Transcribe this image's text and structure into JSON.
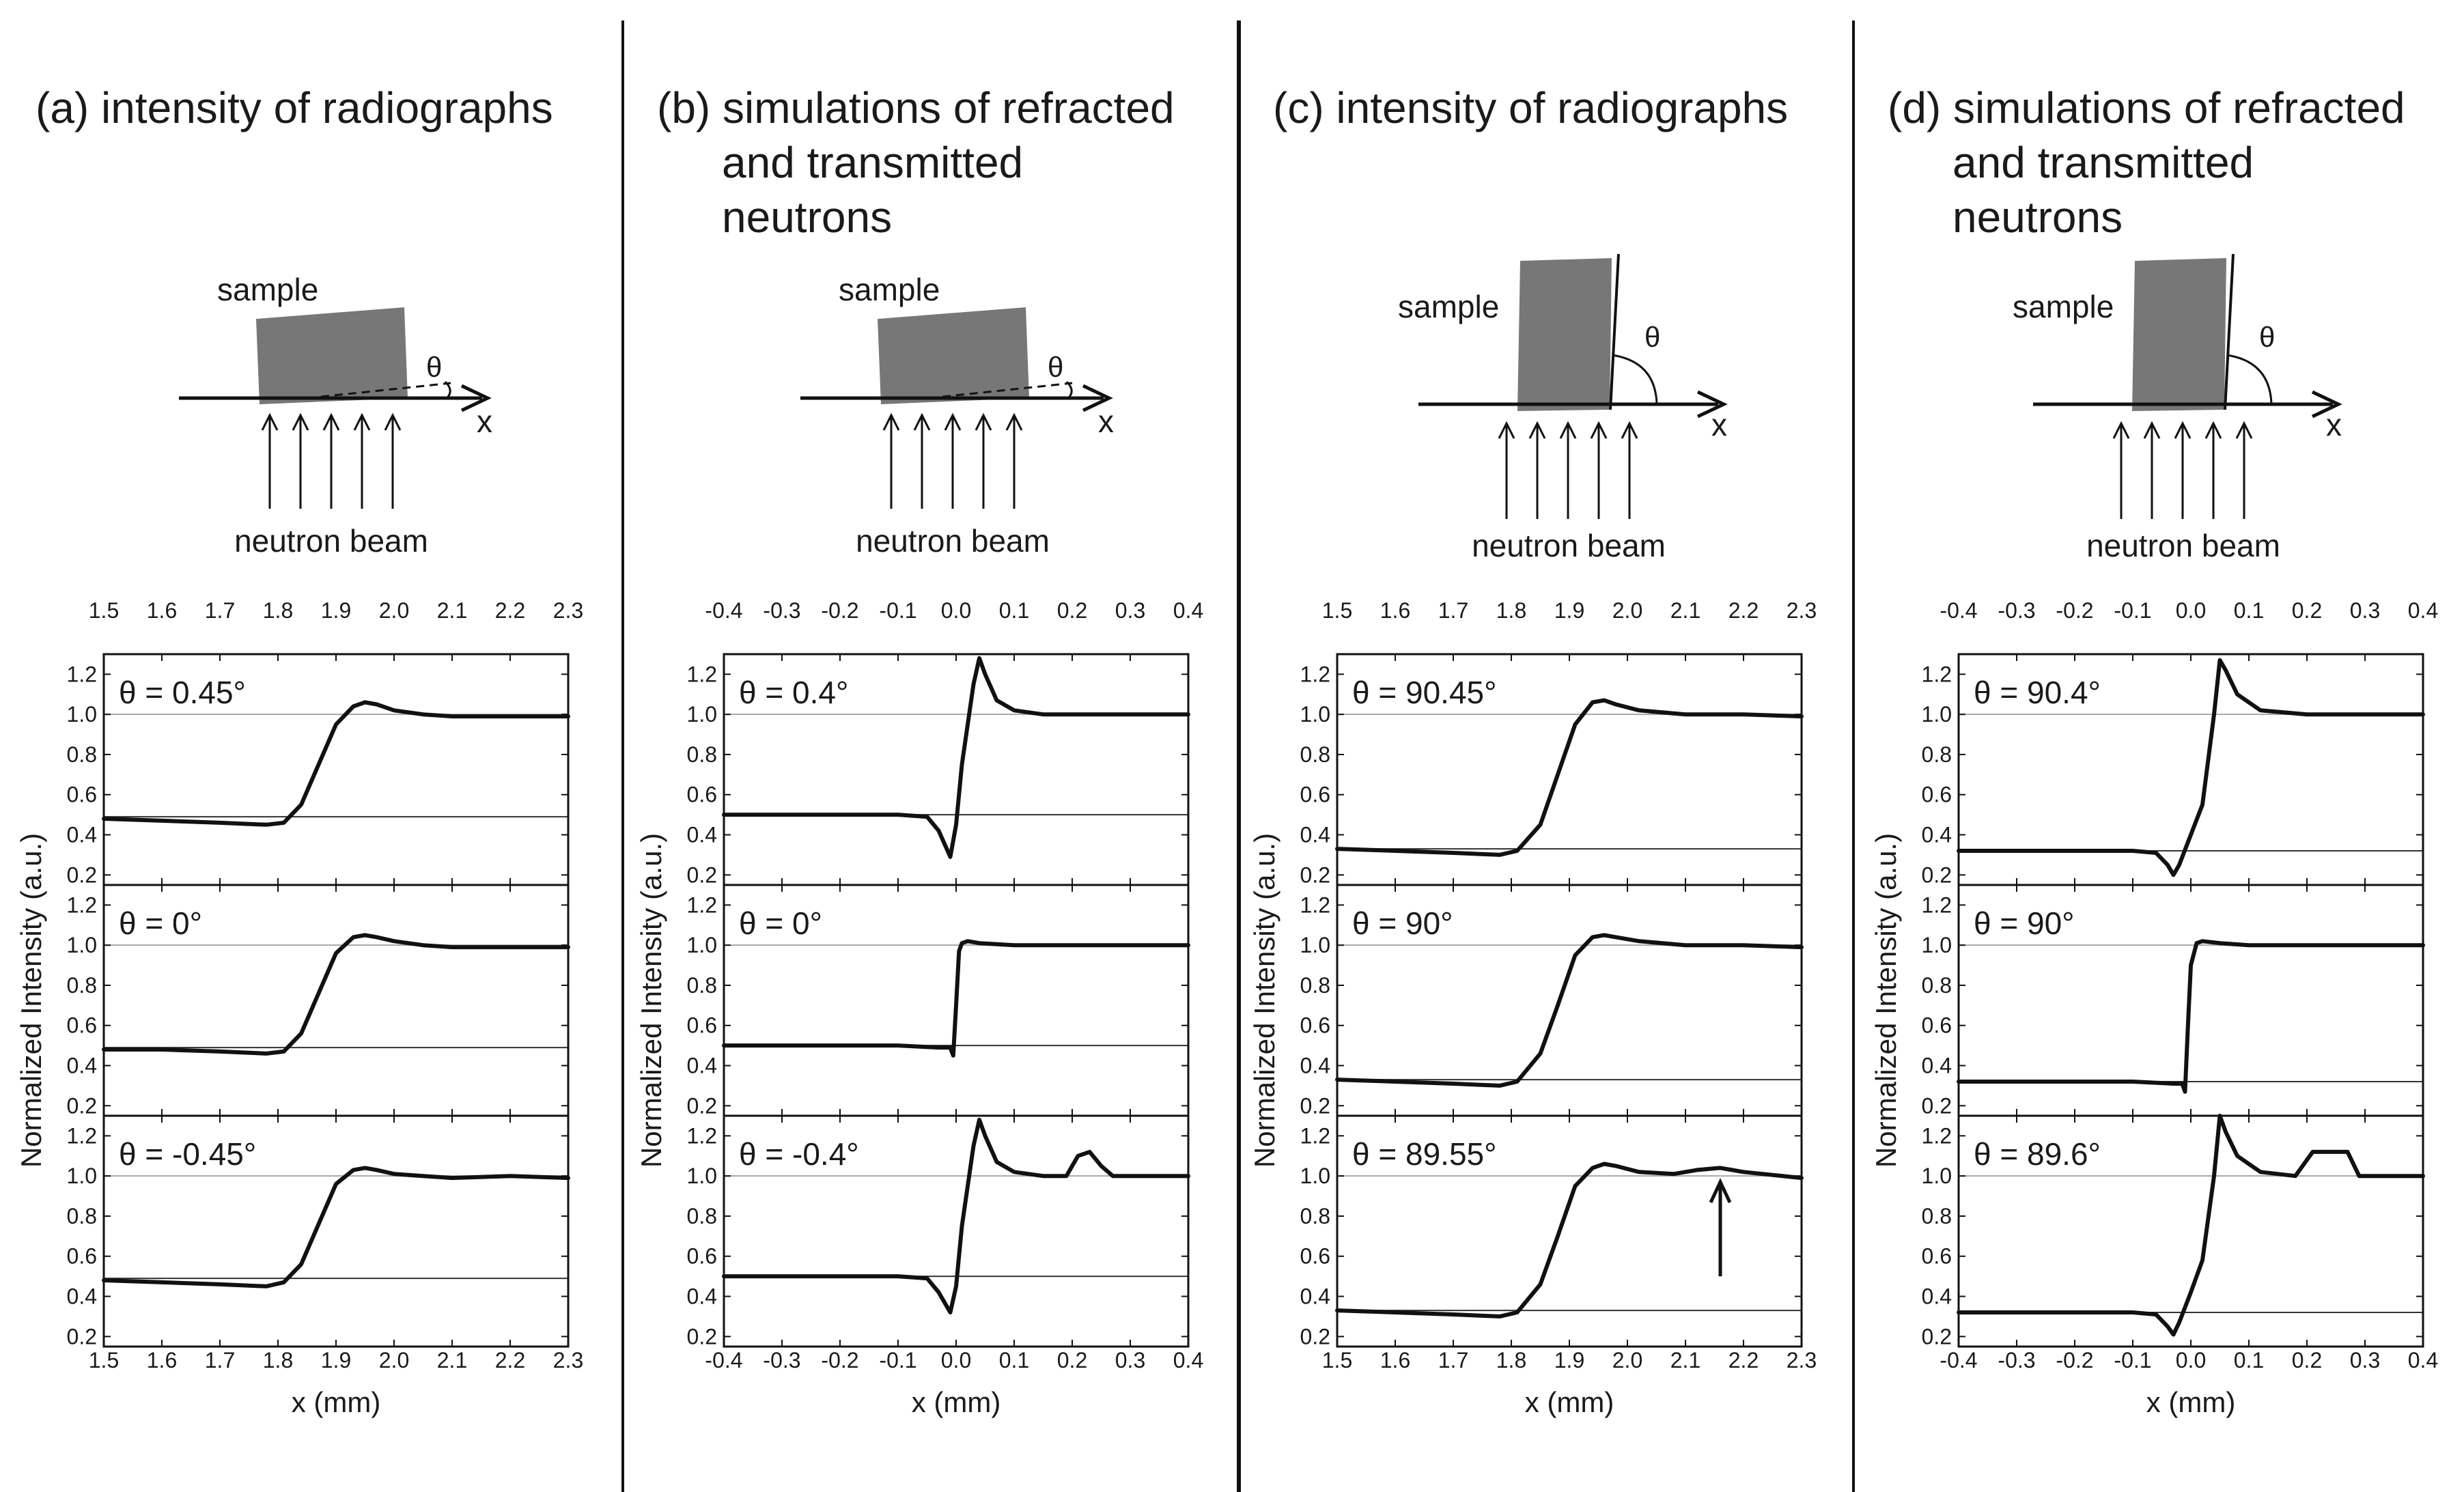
{
  "panels": [
    {
      "id": "a",
      "title_lines": [
        "(a) intensity of radiographs"
      ],
      "schematic": {
        "orientation": "horizontal",
        "sample_label": "sample",
        "angle_label": "θ",
        "axis_label": "x",
        "beam_label": "neutron beam"
      }
    },
    {
      "id": "b",
      "title_lines": [
        "(b) simulations of refracted",
        "and transmitted",
        "neutrons"
      ],
      "schematic": {
        "orientation": "horizontal",
        "sample_label": "sample",
        "angle_label": "θ",
        "axis_label": "x",
        "beam_label": "neutron beam"
      }
    },
    {
      "id": "c",
      "title_lines": [
        "(c) intensity of radiographs"
      ],
      "schematic": {
        "orientation": "vertical",
        "sample_label": "sample",
        "angle_label": "θ",
        "axis_label": "x",
        "beam_label": "neutron beam"
      }
    },
    {
      "id": "d",
      "title_lines": [
        "(d) simulations of refracted",
        "and transmitted",
        "neutrons"
      ],
      "schematic": {
        "orientation": "vertical",
        "sample_label": "sample",
        "angle_label": "θ",
        "axis_label": "x",
        "beam_label": "neutron beam"
      }
    }
  ],
  "chart_data": [
    {
      "panel": "a",
      "type": "line",
      "xlabel": "x (mm)",
      "ylabel": "Normalized Intensity (a.u.)",
      "xlim": [
        1.5,
        2.3
      ],
      "ylim": [
        0.15,
        1.3
      ],
      "xticks": [
        "1.5",
        "1.6",
        "1.7",
        "1.8",
        "1.9",
        "2.0",
        "2.1",
        "2.2",
        "2.3"
      ],
      "yticks": [
        "0.2",
        "0.4",
        "0.6",
        "0.8",
        "1.0",
        "1.2"
      ],
      "subplots": [
        {
          "label": "θ = 0.45°",
          "ref_lines": [
            1.0,
            0.49
          ],
          "series": {
            "x": [
              1.5,
              1.6,
              1.7,
              1.78,
              1.81,
              1.84,
              1.87,
              1.9,
              1.93,
              1.95,
              1.97,
              2.0,
              2.05,
              2.1,
              2.2,
              2.3
            ],
            "y": [
              0.48,
              0.47,
              0.46,
              0.45,
              0.46,
              0.55,
              0.75,
              0.95,
              1.04,
              1.06,
              1.05,
              1.02,
              1.0,
              0.99,
              0.99,
              0.99
            ]
          }
        },
        {
          "label": "θ = 0°",
          "ref_lines": [
            1.0,
            0.49
          ],
          "series": {
            "x": [
              1.5,
              1.6,
              1.7,
              1.78,
              1.81,
              1.84,
              1.87,
              1.9,
              1.93,
              1.95,
              1.97,
              2.0,
              2.05,
              2.1,
              2.2,
              2.3
            ],
            "y": [
              0.48,
              0.48,
              0.47,
              0.46,
              0.47,
              0.56,
              0.76,
              0.96,
              1.04,
              1.05,
              1.04,
              1.02,
              1.0,
              0.99,
              0.99,
              0.99
            ]
          }
        },
        {
          "label": "θ = -0.45°",
          "ref_lines": [
            1.0,
            0.49
          ],
          "series": {
            "x": [
              1.5,
              1.6,
              1.7,
              1.78,
              1.81,
              1.84,
              1.87,
              1.9,
              1.93,
              1.95,
              1.97,
              2.0,
              2.05,
              2.1,
              2.2,
              2.3
            ],
            "y": [
              0.48,
              0.47,
              0.46,
              0.45,
              0.47,
              0.56,
              0.76,
              0.96,
              1.03,
              1.04,
              1.03,
              1.01,
              1.0,
              0.99,
              1.0,
              0.99
            ]
          }
        }
      ]
    },
    {
      "panel": "b",
      "type": "line",
      "xlabel": "x (mm)",
      "ylabel": "Normalized Intensity (a.u.)",
      "xlim": [
        -0.4,
        0.4
      ],
      "ylim": [
        0.15,
        1.3
      ],
      "xticks": [
        "-0.4",
        "-0.3",
        "-0.2",
        "-0.1",
        "0.0",
        "0.1",
        "0.2",
        "0.3",
        "0.4"
      ],
      "yticks": [
        "0.2",
        "0.4",
        "0.6",
        "0.8",
        "1.0",
        "1.2"
      ],
      "subplots": [
        {
          "label": "θ = 0.4°",
          "ref_lines": [
            1.0,
            0.5
          ],
          "series": {
            "x": [
              -0.4,
              -0.1,
              -0.05,
              -0.03,
              -0.01,
              0.0,
              0.01,
              0.03,
              0.04,
              0.05,
              0.07,
              0.1,
              0.15,
              0.2,
              0.4
            ],
            "y": [
              0.5,
              0.5,
              0.49,
              0.42,
              0.29,
              0.45,
              0.75,
              1.15,
              1.28,
              1.2,
              1.07,
              1.02,
              1.0,
              1.0,
              1.0
            ]
          }
        },
        {
          "label": "θ = 0°",
          "ref_lines": [
            1.0,
            0.5
          ],
          "series": {
            "x": [
              -0.4,
              -0.1,
              -0.03,
              -0.01,
              -0.005,
              0.0,
              0.005,
              0.01,
              0.02,
              0.04,
              0.1,
              0.2,
              0.4
            ],
            "y": [
              0.5,
              0.5,
              0.49,
              0.49,
              0.45,
              0.7,
              0.97,
              1.01,
              1.02,
              1.01,
              1.0,
              1.0,
              1.0
            ]
          }
        },
        {
          "label": "θ = -0.4°",
          "ref_lines": [
            1.0,
            0.5
          ],
          "series": {
            "x": [
              -0.4,
              -0.1,
              -0.05,
              -0.03,
              -0.01,
              0.0,
              0.01,
              0.03,
              0.04,
              0.05,
              0.07,
              0.1,
              0.15,
              0.19,
              0.21,
              0.23,
              0.25,
              0.27,
              0.3,
              0.4
            ],
            "y": [
              0.5,
              0.5,
              0.49,
              0.42,
              0.32,
              0.45,
              0.75,
              1.15,
              1.28,
              1.2,
              1.07,
              1.02,
              1.0,
              1.0,
              1.1,
              1.12,
              1.05,
              1.0,
              1.0,
              1.0
            ]
          }
        }
      ]
    },
    {
      "panel": "c",
      "type": "line",
      "xlabel": "x (mm)",
      "ylabel": "Normalized Intensity (a.u.)",
      "xlim": [
        1.5,
        2.3
      ],
      "ylim": [
        0.15,
        1.3
      ],
      "xticks": [
        "1.5",
        "1.6",
        "1.7",
        "1.8",
        "1.9",
        "2.0",
        "2.1",
        "2.2",
        "2.3"
      ],
      "yticks": [
        "0.2",
        "0.4",
        "0.6",
        "0.8",
        "1.0",
        "1.2"
      ],
      "subplots": [
        {
          "label": "θ = 90.45°",
          "ref_lines": [
            1.0,
            0.33
          ],
          "series": {
            "x": [
              1.5,
              1.6,
              1.7,
              1.78,
              1.81,
              1.85,
              1.88,
              1.91,
              1.94,
              1.96,
              1.98,
              2.02,
              2.1,
              2.2,
              2.3
            ],
            "y": [
              0.33,
              0.32,
              0.31,
              0.3,
              0.32,
              0.45,
              0.7,
              0.95,
              1.06,
              1.07,
              1.05,
              1.02,
              1.0,
              1.0,
              0.99
            ]
          }
        },
        {
          "label": "θ = 90°",
          "ref_lines": [
            1.0,
            0.33
          ],
          "series": {
            "x": [
              1.5,
              1.6,
              1.7,
              1.78,
              1.81,
              1.85,
              1.88,
              1.91,
              1.94,
              1.96,
              1.98,
              2.02,
              2.1,
              2.2,
              2.3
            ],
            "y": [
              0.33,
              0.32,
              0.31,
              0.3,
              0.32,
              0.46,
              0.7,
              0.95,
              1.04,
              1.05,
              1.04,
              1.02,
              1.0,
              1.0,
              0.99
            ]
          }
        },
        {
          "label": "θ = 89.55°",
          "ref_lines": [
            1.0,
            0.33
          ],
          "series": {
            "x": [
              1.5,
              1.6,
              1.7,
              1.78,
              1.81,
              1.85,
              1.88,
              1.91,
              1.94,
              1.96,
              1.98,
              2.02,
              2.08,
              2.12,
              2.16,
              2.2,
              2.3
            ],
            "y": [
              0.33,
              0.32,
              0.31,
              0.3,
              0.32,
              0.46,
              0.7,
              0.95,
              1.04,
              1.06,
              1.05,
              1.02,
              1.01,
              1.03,
              1.04,
              1.02,
              0.99
            ]
          }
        }
      ],
      "annotation": {
        "type": "arrow",
        "x": 2.16,
        "y_tail": 0.5,
        "y_head": 0.97
      }
    },
    {
      "panel": "d",
      "type": "line",
      "xlabel": "x (mm)",
      "ylabel": "Normalized Intensity (a.u.)",
      "xlim": [
        -0.4,
        0.4
      ],
      "ylim": [
        0.15,
        1.3
      ],
      "xticks": [
        "-0.4",
        "-0.3",
        "-0.2",
        "-0.1",
        "0.0",
        "0.1",
        "0.2",
        "0.3",
        "0.4"
      ],
      "yticks": [
        "0.2",
        "0.4",
        "0.6",
        "0.8",
        "1.0",
        "1.2"
      ],
      "subplots": [
        {
          "label": "θ = 90.4°",
          "ref_lines": [
            1.0,
            0.32
          ],
          "series": {
            "x": [
              -0.4,
              -0.1,
              -0.06,
              -0.04,
              -0.03,
              -0.02,
              0.0,
              0.02,
              0.04,
              0.05,
              0.06,
              0.08,
              0.12,
              0.2,
              0.4
            ],
            "y": [
              0.32,
              0.32,
              0.31,
              0.25,
              0.2,
              0.25,
              0.4,
              0.55,
              1.0,
              1.27,
              1.22,
              1.1,
              1.02,
              1.0,
              1.0
            ]
          }
        },
        {
          "label": "θ = 90°",
          "ref_lines": [
            1.0,
            0.32
          ],
          "series": {
            "x": [
              -0.4,
              -0.1,
              -0.03,
              -0.015,
              -0.01,
              -0.005,
              0.0,
              0.01,
              0.02,
              0.05,
              0.1,
              0.2,
              0.4
            ],
            "y": [
              0.32,
              0.32,
              0.31,
              0.31,
              0.27,
              0.6,
              0.9,
              1.01,
              1.02,
              1.01,
              1.0,
              1.0,
              1.0
            ]
          }
        },
        {
          "label": "θ = 89.6°",
          "ref_lines": [
            1.0,
            0.32
          ],
          "series": {
            "x": [
              -0.4,
              -0.1,
              -0.06,
              -0.04,
              -0.03,
              -0.02,
              0.0,
              0.02,
              0.04,
              0.05,
              0.06,
              0.08,
              0.12,
              0.18,
              0.21,
              0.23,
              0.27,
              0.29,
              0.31,
              0.4
            ],
            "y": [
              0.32,
              0.32,
              0.31,
              0.25,
              0.21,
              0.27,
              0.42,
              0.58,
              1.0,
              1.3,
              1.22,
              1.1,
              1.02,
              1.0,
              1.12,
              1.12,
              1.12,
              1.0,
              1.0,
              1.0
            ]
          }
        }
      ]
    }
  ]
}
